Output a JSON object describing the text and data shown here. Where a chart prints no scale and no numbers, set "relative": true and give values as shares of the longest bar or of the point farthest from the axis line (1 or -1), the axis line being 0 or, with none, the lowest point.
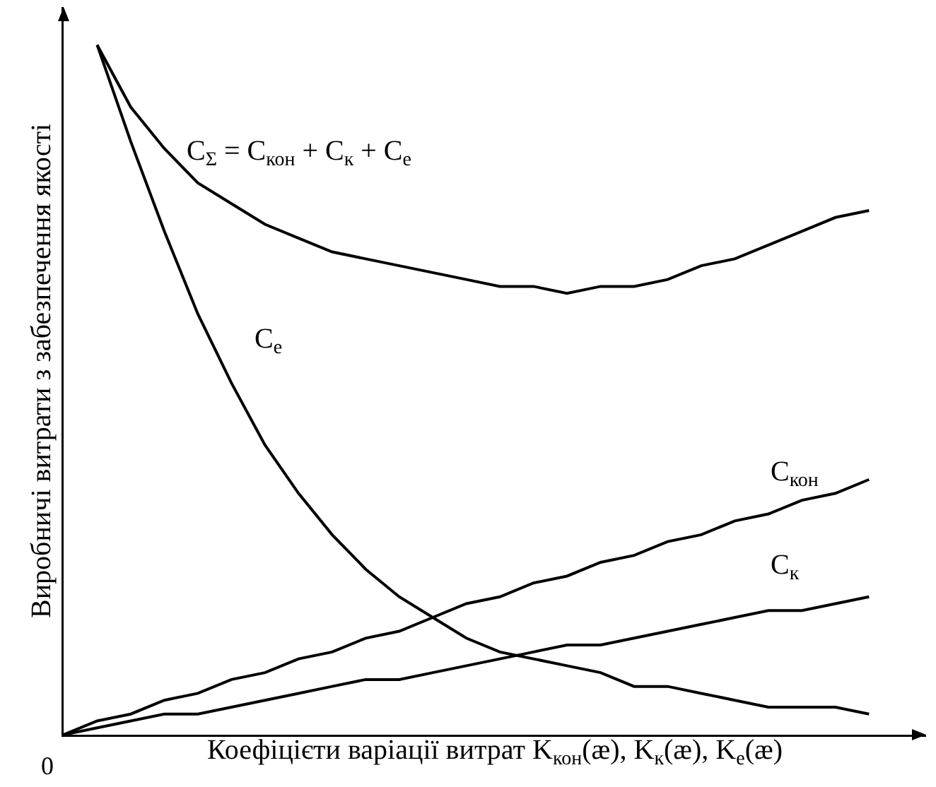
{
  "chart_data": {
    "type": "line",
    "relative": true,
    "xlabel": "Коефіцієти варіації витрат K$_{кон}$(æ), K$_{к}$(æ), K$_{е}$(æ)",
    "ylabel": "Виробничі витрати з забезпечення якості",
    "annotations": [
      "0"
    ],
    "marker": "none",
    "line_style": "solid",
    "legend": false,
    "categories": [
      null,
      null,
      null,
      null,
      null,
      null,
      null,
      null,
      null,
      null,
      null,
      null,
      null,
      null,
      null,
      null,
      null,
      null,
      null,
      null,
      null,
      null,
      null,
      null,
      null
    ],
    "series": [
      {
        "name": "C$_{Σ}$ = C$_{кон}$ + C$_{к}$ + C$_{е}$",
        "color": "#000000",
        "values": [
          null,
          1.0,
          0.91,
          0.85,
          0.8,
          0.77,
          0.74,
          0.72,
          0.7,
          0.69,
          0.68,
          0.67,
          0.66,
          0.65,
          0.65,
          0.64,
          0.65,
          0.65,
          0.66,
          0.68,
          0.69,
          0.71,
          0.73,
          0.75,
          0.76
        ]
      },
      {
        "name": "C$_{е}$",
        "color": "#000000",
        "values": [
          null,
          1.0,
          0.86,
          0.73,
          0.61,
          0.51,
          0.42,
          0.35,
          0.29,
          0.24,
          0.2,
          0.17,
          0.14,
          0.12,
          0.11,
          0.1,
          0.09,
          0.07,
          0.07,
          0.06,
          0.05,
          0.04,
          0.04,
          0.04,
          0.03
        ]
      },
      {
        "name": "C$_{кон}$",
        "color": "#000000",
        "values": [
          0,
          0.02,
          0.03,
          0.05,
          0.06,
          0.08,
          0.09,
          0.11,
          0.12,
          0.14,
          0.15,
          0.17,
          0.19,
          0.2,
          0.22,
          0.23,
          0.25,
          0.26,
          0.28,
          0.29,
          0.31,
          0.32,
          0.34,
          0.35,
          0.37
        ]
      },
      {
        "name": "C$_{к}$",
        "color": "#000000",
        "values": [
          0,
          0.01,
          0.02,
          0.03,
          0.03,
          0.04,
          0.05,
          0.06,
          0.07,
          0.08,
          0.08,
          0.09,
          0.1,
          0.11,
          0.12,
          0.13,
          0.13,
          0.14,
          0.15,
          0.16,
          0.17,
          0.18,
          0.18,
          0.19,
          0.2
        ]
      }
    ]
  }
}
